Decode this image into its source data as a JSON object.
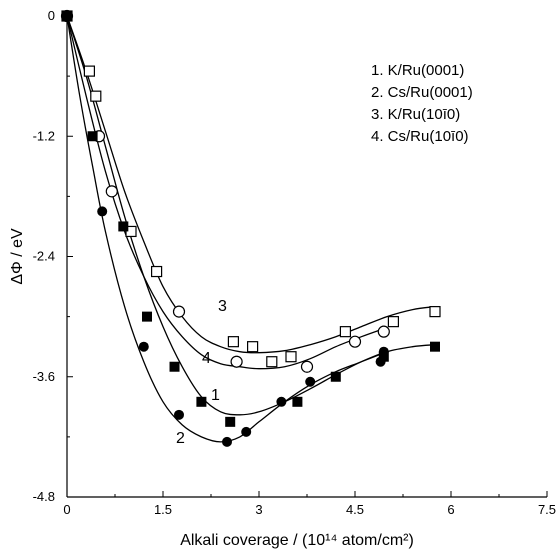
{
  "chart_data": {
    "type": "scatter",
    "title": "",
    "xlabel": "Alkali coverage / (10¹⁴ atom/cm²)",
    "ylabel": "ΔΦ / eV",
    "xlim": [
      0,
      7.5
    ],
    "ylim": [
      -4.8,
      0
    ],
    "xticks": [
      0,
      1.5,
      3,
      4.5,
      6,
      7.5
    ],
    "xtick_labels": [
      "0",
      "1.5",
      "3",
      "4.5",
      "6",
      "7.5"
    ],
    "yticks": [
      0,
      -1.2,
      -2.4,
      -3.6,
      -4.8
    ],
    "ytick_labels": [
      "0",
      "-1.2",
      "-2.4",
      "-3.6",
      "-4.8"
    ],
    "grid": false,
    "legend_position": "top-right",
    "legend": [
      "1. K/Ru(0001)",
      "2. Cs/Ru(0001)",
      "3. K/Ru(10ī0)",
      "4. Cs/Ru(10ī0)"
    ],
    "series": [
      {
        "name": "1. K/Ru(0001)",
        "curve_label": "1",
        "marker": "filled-square",
        "points": [
          [
            0,
            0
          ],
          [
            0.4,
            -1.2
          ],
          [
            0.88,
            -2.1
          ],
          [
            1.25,
            -3.0
          ],
          [
            1.68,
            -3.5
          ],
          [
            2.1,
            -3.85
          ],
          [
            2.55,
            -4.05
          ],
          [
            3.6,
            -3.85
          ],
          [
            4.2,
            -3.6
          ],
          [
            4.95,
            -3.4
          ],
          [
            5.75,
            -3.3
          ]
        ],
        "fit": [
          [
            0,
            0
          ],
          [
            0.3,
            -0.6
          ],
          [
            0.6,
            -1.3
          ],
          [
            0.9,
            -2.0
          ],
          [
            1.2,
            -2.6
          ],
          [
            1.5,
            -3.1
          ],
          [
            1.8,
            -3.5
          ],
          [
            2.1,
            -3.8
          ],
          [
            2.4,
            -3.95
          ],
          [
            2.7,
            -3.98
          ],
          [
            3.0,
            -3.95
          ],
          [
            3.4,
            -3.85
          ],
          [
            3.8,
            -3.72
          ],
          [
            4.2,
            -3.58
          ],
          [
            4.6,
            -3.45
          ],
          [
            5.0,
            -3.35
          ],
          [
            5.4,
            -3.3
          ],
          [
            5.75,
            -3.28
          ]
        ]
      },
      {
        "name": "2. Cs/Ru(0001)",
        "curve_label": "2",
        "marker": "filled-circle",
        "points": [
          [
            0,
            0
          ],
          [
            0.55,
            -1.95
          ],
          [
            1.2,
            -3.3
          ],
          [
            1.75,
            -3.98
          ],
          [
            2.5,
            -4.25
          ],
          [
            2.8,
            -4.15
          ],
          [
            3.35,
            -3.85
          ],
          [
            3.8,
            -3.65
          ],
          [
            4.9,
            -3.45
          ],
          [
            4.95,
            -3.35
          ]
        ],
        "fit": [
          [
            0,
            0
          ],
          [
            0.2,
            -0.8
          ],
          [
            0.4,
            -1.5
          ],
          [
            0.6,
            -2.15
          ],
          [
            0.9,
            -2.9
          ],
          [
            1.2,
            -3.45
          ],
          [
            1.5,
            -3.85
          ],
          [
            1.8,
            -4.08
          ],
          [
            2.1,
            -4.2
          ],
          [
            2.4,
            -4.25
          ],
          [
            2.7,
            -4.2
          ],
          [
            3.0,
            -4.05
          ],
          [
            3.4,
            -3.85
          ],
          [
            3.8,
            -3.68
          ],
          [
            4.2,
            -3.55
          ],
          [
            4.6,
            -3.45
          ],
          [
            5.0,
            -3.35
          ]
        ]
      },
      {
        "name": "3. K/Ru(10ī0)",
        "curve_label": "3",
        "marker": "open-square",
        "points": [
          [
            0,
            0
          ],
          [
            0.35,
            -0.55
          ],
          [
            0.45,
            -0.8
          ],
          [
            1.0,
            -2.15
          ],
          [
            1.4,
            -2.55
          ],
          [
            2.6,
            -3.25
          ],
          [
            2.9,
            -3.3
          ],
          [
            3.2,
            -3.45
          ],
          [
            3.5,
            -3.4
          ],
          [
            4.35,
            -3.15
          ],
          [
            5.1,
            -3.05
          ],
          [
            5.75,
            -2.95
          ]
        ],
        "fit": [
          [
            0,
            0
          ],
          [
            0.3,
            -0.55
          ],
          [
            0.6,
            -1.15
          ],
          [
            0.9,
            -1.75
          ],
          [
            1.2,
            -2.25
          ],
          [
            1.5,
            -2.7
          ],
          [
            1.8,
            -3.0
          ],
          [
            2.1,
            -3.2
          ],
          [
            2.4,
            -3.3
          ],
          [
            2.7,
            -3.35
          ],
          [
            3.0,
            -3.36
          ],
          [
            3.4,
            -3.34
          ],
          [
            3.8,
            -3.28
          ],
          [
            4.2,
            -3.2
          ],
          [
            4.6,
            -3.1
          ],
          [
            5.0,
            -3.0
          ],
          [
            5.4,
            -2.93
          ],
          [
            5.75,
            -2.9
          ]
        ]
      },
      {
        "name": "4. Cs/Ru(10ī0)",
        "curve_label": "4",
        "marker": "open-circle",
        "points": [
          [
            0,
            0
          ],
          [
            0.5,
            -1.2
          ],
          [
            0.7,
            -1.75
          ],
          [
            1.75,
            -2.95
          ],
          [
            2.65,
            -3.45
          ],
          [
            3.75,
            -3.5
          ],
          [
            4.5,
            -3.25
          ],
          [
            4.95,
            -3.15
          ]
        ],
        "fit": [
          [
            0,
            0
          ],
          [
            0.3,
            -0.8
          ],
          [
            0.6,
            -1.55
          ],
          [
            0.9,
            -2.15
          ],
          [
            1.2,
            -2.6
          ],
          [
            1.5,
            -2.95
          ],
          [
            1.8,
            -3.2
          ],
          [
            2.1,
            -3.38
          ],
          [
            2.4,
            -3.47
          ],
          [
            2.7,
            -3.5
          ],
          [
            3.0,
            -3.52
          ],
          [
            3.4,
            -3.5
          ],
          [
            3.8,
            -3.42
          ],
          [
            4.2,
            -3.3
          ],
          [
            4.6,
            -3.2
          ],
          [
            4.95,
            -3.12
          ]
        ]
      }
    ]
  }
}
